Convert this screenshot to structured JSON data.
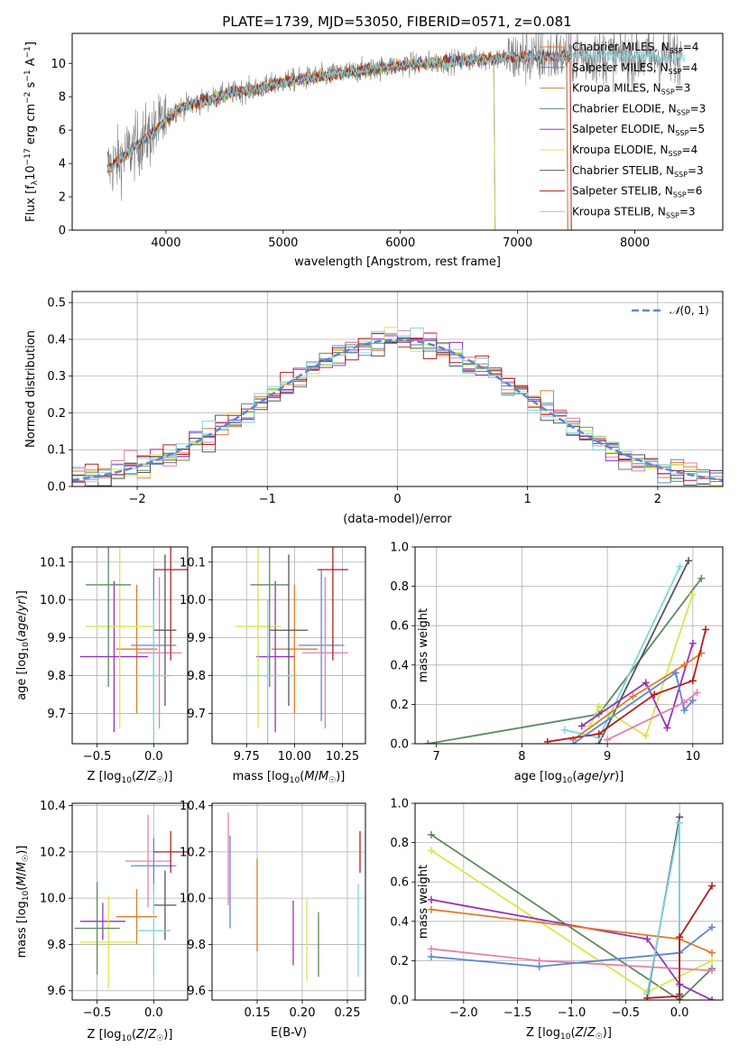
{
  "title": "PLATE=1739, MJD=53050, FIBERID=0571, z=0.081",
  "colors": {
    "Chabrier MILES": "#e07b27",
    "Salpeter MILES": "#5b86d6",
    "Kroupa MILES": "#e07b27",
    "Chabrier ELODIE": "#5d8a5d",
    "Salpeter ELODIE": "#9b30b8",
    "Kroupa ELODIE": "#d6e84a",
    "Chabrier STELIB": "#555555",
    "Salpeter STELIB": "#b01f1f",
    "Kroupa STELIB": "#7fd6e0",
    "pink": "#e57fb0",
    "gaussian": "#5b86d6",
    "grey_spectrum": "#808080"
  },
  "chart_data": [
    {
      "type": "line",
      "title": "PLATE=1739, MJD=53050, FIBERID=0571, z=0.081",
      "xlabel": "wavelength [Angstrom, rest frame]",
      "ylabel": "Flux [f_λ 10^-17 erg cm^-2 s^-1 A^-1]",
      "xlim": [
        3200,
        8750
      ],
      "ylim": [
        0,
        11.8
      ],
      "xticks": [
        "4000",
        "5000",
        "6000",
        "7000",
        "8000"
      ],
      "yticks": [
        "0",
        "2",
        "4",
        "6",
        "8",
        "10"
      ],
      "legend_position": "right",
      "legend": [
        {
          "name": "Chabrier MILES, N",
          "sub": "SSP",
          "n": "=4"
        },
        {
          "name": "Salpeter MILES, N",
          "sub": "SSP",
          "n": "=4"
        },
        {
          "name": "Kroupa MILES, N",
          "sub": "SSP",
          "n": "=3"
        },
        {
          "name": "Chabrier ELODIE, N",
          "sub": "SSP",
          "n": "=3"
        },
        {
          "name": "Salpeter ELODIE, N",
          "sub": "SSP",
          "n": "=5"
        },
        {
          "name": "Kroupa ELODIE, N",
          "sub": "SSP",
          "n": "=4"
        },
        {
          "name": "Chabrier STELIB, N",
          "sub": "SSP",
          "n": "=3"
        },
        {
          "name": "Salpeter STELIB, N",
          "sub": "SSP",
          "n": "=6"
        },
        {
          "name": "Kroupa STELIB, N",
          "sub": "SSP",
          "n": "=3"
        }
      ],
      "continuum": [
        [
          3500,
          3.7
        ],
        [
          3600,
          4.2
        ],
        [
          3700,
          4.8
        ],
        [
          3800,
          5.4
        ],
        [
          3900,
          5.9
        ],
        [
          4000,
          6.6
        ],
        [
          4100,
          7.3
        ],
        [
          4200,
          7.5
        ],
        [
          4400,
          7.9
        ],
        [
          4600,
          8.3
        ],
        [
          4800,
          8.5
        ],
        [
          5000,
          8.9
        ],
        [
          5200,
          9.1
        ],
        [
          5400,
          9.3
        ],
        [
          5600,
          9.5
        ],
        [
          5800,
          9.7
        ],
        [
          6000,
          9.9
        ],
        [
          6200,
          10.0
        ],
        [
          6400,
          10.1
        ],
        [
          6600,
          10.2
        ],
        [
          6800,
          10.3
        ],
        [
          7000,
          10.35
        ],
        [
          7200,
          10.4
        ],
        [
          7400,
          10.45
        ],
        [
          7600,
          10.45
        ],
        [
          7800,
          10.45
        ],
        [
          8000,
          10.4
        ],
        [
          8200,
          10.35
        ],
        [
          8400,
          10.35
        ]
      ]
    },
    {
      "type": "histogram",
      "xlabel": "(data-model)/error",
      "ylabel": "Normed distribution",
      "xlim": [
        -2.5,
        2.5
      ],
      "ylim": [
        0,
        0.53
      ],
      "xticks": [
        "−2",
        "−1",
        "0",
        "1",
        "2"
      ],
      "yticks": [
        "0.0",
        "0.1",
        "0.2",
        "0.3",
        "0.4",
        "0.5"
      ],
      "legend": "N(0,1)",
      "legend_position": "top-right"
    },
    {
      "type": "scatter",
      "xlabel": "Z [log10(Z/Z☉)]",
      "ylabel": "age [log10(age/yr)]",
      "xlim": [
        -0.72,
        0.3
      ],
      "ylim": [
        9.62,
        10.14
      ],
      "xticks": [
        "−0.5",
        "0.0"
      ],
      "yticks": [
        "9.7",
        "9.8",
        "9.9",
        "10.0",
        "10.1"
      ],
      "points": [
        {
          "x": -0.15,
          "y": 9.87,
          "xerr": 0.18,
          "yerr": 0.17,
          "color": "#e07b27"
        },
        {
          "x": 0.0,
          "y": 9.88,
          "xerr": 0.2,
          "yerr": 0.2,
          "color": "#5b86d6"
        },
        {
          "x": -0.35,
          "y": 9.85,
          "xerr": 0.3,
          "yerr": 0.2,
          "color": "#9b30b8"
        },
        {
          "x": -0.3,
          "y": 9.93,
          "xerr": 0.3,
          "yerr": 0.27,
          "color": "#d6e84a"
        },
        {
          "x": -0.4,
          "y": 10.04,
          "xerr": 0.2,
          "yerr": 0.27,
          "color": "#5d8a5d"
        },
        {
          "x": 0.05,
          "y": 9.86,
          "xerr": 0.2,
          "yerr": 0.2,
          "color": "#e57fb0"
        },
        {
          "x": 0.1,
          "y": 9.92,
          "xerr": 0.1,
          "yerr": 0.2,
          "color": "#555555"
        },
        {
          "x": 0.15,
          "y": 10.08,
          "xerr": 0.15,
          "yerr": 0.24,
          "color": "#b01f1f"
        },
        {
          "x": 0.0,
          "y": 9.8,
          "xerr": 0.15,
          "yerr": 0.2,
          "color": "#7fd6e0"
        }
      ]
    },
    {
      "type": "scatter",
      "xlabel": "mass [log10(M/M☉)]",
      "ylabel": "",
      "xlim": [
        9.57,
        10.37
      ],
      "ylim": [
        9.62,
        10.14
      ],
      "xticks": [
        "9.75",
        "10.00",
        "10.25"
      ],
      "yticks": [
        "9.7",
        "9.8",
        "9.9",
        "10.0",
        "10.1"
      ],
      "points": [
        {
          "x": 10.0,
          "y": 9.87,
          "xerr": 0.12,
          "yerr": 0.17,
          "color": "#e07b27"
        },
        {
          "x": 10.14,
          "y": 9.88,
          "xerr": 0.12,
          "yerr": 0.2,
          "color": "#5b86d6"
        },
        {
          "x": 9.9,
          "y": 9.85,
          "xerr": 0.1,
          "yerr": 0.2,
          "color": "#9b30b8"
        },
        {
          "x": 9.81,
          "y": 9.93,
          "xerr": 0.12,
          "yerr": 0.27,
          "color": "#d6e84a"
        },
        {
          "x": 9.87,
          "y": 10.04,
          "xerr": 0.1,
          "yerr": 0.27,
          "color": "#5d8a5d"
        },
        {
          "x": 10.16,
          "y": 9.86,
          "xerr": 0.12,
          "yerr": 0.2,
          "color": "#e57fb0"
        },
        {
          "x": 9.97,
          "y": 9.92,
          "xerr": 0.1,
          "yerr": 0.2,
          "color": "#555555"
        },
        {
          "x": 10.2,
          "y": 10.08,
          "xerr": 0.08,
          "yerr": 0.24,
          "color": "#b01f1f"
        },
        {
          "x": 9.86,
          "y": 9.8,
          "xerr": 0.14,
          "yerr": 0.2,
          "color": "#7fd6e0"
        }
      ]
    },
    {
      "type": "line",
      "xlabel": "age [log10(age/yr)]",
      "ylabel": "mass weight",
      "xlim": [
        6.75,
        10.35
      ],
      "ylim": [
        0,
        1
      ],
      "xticks": [
        "7",
        "8",
        "9",
        "10"
      ],
      "yticks": [
        "0.0",
        "0.2",
        "0.4",
        "0.6",
        "0.8",
        "1.0"
      ],
      "series": [
        {
          "color": "#5d8a5d",
          "points": [
            [
              6.9,
              0.0
            ],
            [
              8.9,
              0.15
            ],
            [
              10.1,
              0.84
            ]
          ]
        },
        {
          "color": "#555555",
          "points": [
            [
              8.9,
              0.0
            ],
            [
              9.95,
              0.93
            ]
          ]
        },
        {
          "color": "#7fd6e0",
          "points": [
            [
              8.5,
              0.07
            ],
            [
              8.9,
              0.03
            ],
            [
              9.85,
              0.9
            ]
          ]
        },
        {
          "color": "#d6e84a",
          "points": [
            [
              8.8,
              0.09
            ],
            [
              8.9,
              0.19
            ],
            [
              9.45,
              0.04
            ],
            [
              10.0,
              0.76
            ]
          ]
        },
        {
          "color": "#9b30b8",
          "points": [
            [
              8.7,
              0.09
            ],
            [
              9.45,
              0.31
            ],
            [
              9.7,
              0.08
            ],
            [
              10.0,
              0.51
            ]
          ]
        },
        {
          "color": "#e07b27",
          "points": [
            [
              8.6,
              0.02
            ],
            [
              9.3,
              0.24
            ],
            [
              9.9,
              0.4
            ],
            [
              10.1,
              0.46
            ]
          ]
        },
        {
          "color": "#b01f1f",
          "points": [
            [
              8.3,
              0.01
            ],
            [
              8.9,
              0.05
            ],
            [
              9.55,
              0.25
            ],
            [
              10.0,
              0.32
            ],
            [
              10.15,
              0.58
            ]
          ]
        },
        {
          "color": "#5b86d6",
          "points": [
            [
              8.6,
              0.0
            ],
            [
              9.8,
              0.36
            ],
            [
              9.9,
              0.17
            ],
            [
              10.0,
              0.22
            ]
          ]
        },
        {
          "color": "#e57fb0",
          "points": [
            [
              9.0,
              0.02
            ],
            [
              9.9,
              0.21
            ],
            [
              10.05,
              0.26
            ]
          ]
        }
      ]
    },
    {
      "type": "scatter",
      "xlabel": "Z [log10(Z/Z☉)]",
      "ylabel": "mass [log10(M/M☉)]",
      "xlim": [
        -0.72,
        0.3
      ],
      "ylim": [
        9.56,
        10.41
      ],
      "xticks": [
        "−0.5",
        "0.0"
      ],
      "yticks": [
        "9.6",
        "9.8",
        "10.0",
        "10.2",
        "10.4"
      ],
      "points": [
        {
          "x": -0.15,
          "y": 9.92,
          "xerr": 0.18,
          "yerr": 0.12,
          "color": "#e07b27"
        },
        {
          "x": 0.0,
          "y": 10.14,
          "xerr": 0.2,
          "yerr": 0.12,
          "color": "#5b86d6"
        },
        {
          "x": -0.45,
          "y": 9.9,
          "xerr": 0.2,
          "yerr": 0.08,
          "color": "#9b30b8"
        },
        {
          "x": -0.4,
          "y": 9.81,
          "xerr": 0.25,
          "yerr": 0.2,
          "color": "#d6e84a"
        },
        {
          "x": -0.5,
          "y": 9.87,
          "xerr": 0.2,
          "yerr": 0.2,
          "color": "#5d8a5d"
        },
        {
          "x": -0.05,
          "y": 10.16,
          "xerr": 0.2,
          "yerr": 0.2,
          "color": "#e57fb0"
        },
        {
          "x": 0.1,
          "y": 9.97,
          "xerr": 0.1,
          "yerr": 0.15,
          "color": "#555555"
        },
        {
          "x": 0.15,
          "y": 10.2,
          "xerr": 0.15,
          "yerr": 0.09,
          "color": "#b01f1f"
        },
        {
          "x": 0.0,
          "y": 9.86,
          "xerr": 0.15,
          "yerr": 0.2,
          "color": "#7fd6e0"
        }
      ]
    },
    {
      "type": "scatter",
      "xlabel": "E(B-V)",
      "ylabel": "",
      "xlim": [
        0.1,
        0.27
      ],
      "ylim": [
        9.56,
        10.41
      ],
      "xticks": [
        "0.15",
        "0.20",
        "0.25"
      ],
      "yticks": [
        "9.6",
        "9.8",
        "10.0",
        "10.2",
        "10.4"
      ],
      "points": [
        {
          "x": 0.15,
          "y": 9.97,
          "yerr": 0.2,
          "color": "#e07b27"
        },
        {
          "x": 0.12,
          "y": 10.07,
          "yerr": 0.2,
          "color": "#5b86d6"
        },
        {
          "x": 0.19,
          "y": 9.85,
          "yerr": 0.14,
          "color": "#9b30b8"
        },
        {
          "x": 0.205,
          "y": 9.82,
          "yerr": 0.18,
          "color": "#d6e84a"
        },
        {
          "x": 0.218,
          "y": 9.8,
          "yerr": 0.14,
          "color": "#5d8a5d"
        },
        {
          "x": 0.118,
          "y": 10.17,
          "yerr": 0.2,
          "color": "#e57fb0"
        },
        {
          "x": 0.264,
          "y": 10.2,
          "yerr": 0.09,
          "color": "#b01f1f"
        },
        {
          "x": 0.262,
          "y": 9.86,
          "yerr": 0.2,
          "color": "#7fd6e0"
        }
      ]
    },
    {
      "type": "line",
      "xlabel": "Z [log10(Z/Z☉)]",
      "ylabel": "mass weight",
      "xlim": [
        -2.45,
        0.4
      ],
      "ylim": [
        0,
        1
      ],
      "xticks": [
        "−2.0",
        "−1.5",
        "−1.0",
        "−0.5",
        "0.0"
      ],
      "yticks": [
        "0.0",
        "0.2",
        "0.4",
        "0.6",
        "0.8",
        "1.0"
      ],
      "series": [
        {
          "color": "#5d8a5d",
          "points": [
            [
              -2.3,
              0.84
            ],
            [
              0.0,
              0.0
            ],
            [
              0.3,
              0.16
            ]
          ]
        },
        {
          "color": "#d6e84a",
          "points": [
            [
              -2.3,
              0.76
            ],
            [
              -0.3,
              0.04
            ],
            [
              0.3,
              0.2
            ]
          ]
        },
        {
          "color": "#9b30b8",
          "points": [
            [
              -2.3,
              0.51
            ],
            [
              -0.3,
              0.31
            ],
            [
              0.0,
              0.08
            ],
            [
              0.3,
              0.0
            ]
          ]
        },
        {
          "color": "#e07b27",
          "points": [
            [
              -2.3,
              0.46
            ],
            [
              0.0,
              0.31
            ],
            [
              0.3,
              0.24
            ]
          ]
        },
        {
          "color": "#e57fb0",
          "points": [
            [
              -2.3,
              0.26
            ],
            [
              -1.3,
              0.2
            ],
            [
              0.3,
              0.15
            ]
          ]
        },
        {
          "color": "#5b86d6",
          "points": [
            [
              -2.3,
              0.22
            ],
            [
              -1.3,
              0.17
            ],
            [
              0.0,
              0.24
            ],
            [
              0.3,
              0.37
            ]
          ]
        },
        {
          "color": "#555555",
          "points": [
            [
              -0.3,
              0.01
            ],
            [
              0.0,
              0.93
            ],
            [
              0.0,
              0.03
            ]
          ]
        },
        {
          "color": "#7fd6e0",
          "points": [
            [
              -0.3,
              0.03
            ],
            [
              0.0,
              0.9
            ],
            [
              0.0,
              0.07
            ]
          ]
        },
        {
          "color": "#b01f1f",
          "points": [
            [
              -0.3,
              0.01
            ],
            [
              0.0,
              0.02
            ],
            [
              0.0,
              0.32
            ],
            [
              0.3,
              0.58
            ]
          ]
        }
      ]
    }
  ]
}
